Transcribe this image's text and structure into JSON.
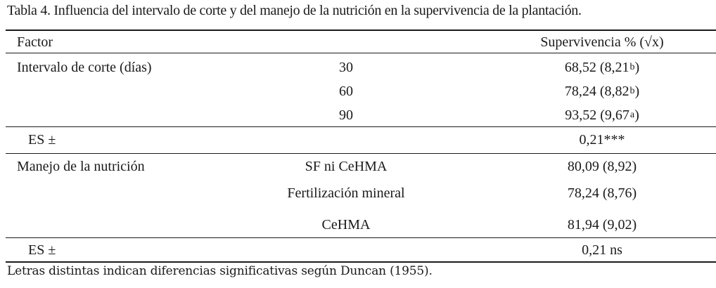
{
  "caption": "Tabla 4. Influencia del intervalo de corte y del manejo de la nutrición en la supervivencia de la plantación.",
  "table": {
    "header": {
      "factor": "Factor",
      "value": "Supervivencia % (√x)"
    },
    "groups": [
      {
        "label": "Intervalo de corte (días)",
        "rows": [
          {
            "level": "30",
            "value": "68,52 (8,21",
            "sup": "b",
            "close": ")"
          },
          {
            "level": "60",
            "value": "78,24 (8,82",
            "sup": "b",
            "close": ")"
          },
          {
            "level": "90",
            "value": "93,52 (9,67",
            "sup": "a",
            "close": ")"
          }
        ],
        "es_label": "ES ±",
        "es_value": "0,21***"
      },
      {
        "label": "Manejo de la nutrición",
        "rows": [
          {
            "level": "SF ni CeHMA",
            "value": "80,09 (8,92)"
          },
          {
            "level": "Fertilización mineral",
            "value": "78,24 (8,76)"
          },
          {
            "level": "CeHMA",
            "value": "81,94 (9,02)"
          }
        ],
        "es_label": "ES ±",
        "es_value": "0,21 ns"
      }
    ]
  },
  "footnote": "Letras distintas indican diferencias significativas según Duncan (1955)."
}
